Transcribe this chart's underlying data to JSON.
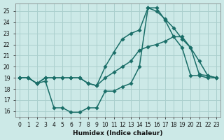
{
  "xlabel": "Humidex (Indice chaleur)",
  "xlim": [
    -0.5,
    23.5
  ],
  "ylim": [
    15.5,
    25.7
  ],
  "xticks": [
    0,
    1,
    2,
    3,
    4,
    5,
    6,
    7,
    8,
    9,
    10,
    11,
    12,
    13,
    14,
    15,
    16,
    17,
    18,
    19,
    20,
    21,
    22,
    23
  ],
  "yticks": [
    16,
    17,
    18,
    19,
    20,
    21,
    22,
    23,
    24,
    25
  ],
  "bg_color": "#cce9e7",
  "grid_color": "#aacfcd",
  "line_color": "#1a6e68",
  "line1_x": [
    0,
    1,
    2,
    3,
    4,
    5,
    6,
    7,
    8,
    9,
    10,
    11,
    12,
    13,
    14,
    15,
    16,
    17,
    18,
    19,
    20,
    21,
    22,
    23
  ],
  "line1_y": [
    19.0,
    19.0,
    18.5,
    18.7,
    16.3,
    16.3,
    15.9,
    15.9,
    16.3,
    16.3,
    17.8,
    17.8,
    18.2,
    18.5,
    20.0,
    25.3,
    25.3,
    24.2,
    22.7,
    21.7,
    19.2,
    19.2,
    19.0,
    19.0
  ],
  "line2_x": [
    0,
    1,
    2,
    3,
    4,
    5,
    6,
    7,
    8,
    9,
    10,
    11,
    12,
    13,
    14,
    15,
    16,
    17,
    18,
    19,
    20,
    21,
    22,
    23
  ],
  "line2_y": [
    19.0,
    19.0,
    18.5,
    19.0,
    19.0,
    19.0,
    19.0,
    19.0,
    18.5,
    18.3,
    19.0,
    19.5,
    20.0,
    20.5,
    21.5,
    21.8,
    22.0,
    22.3,
    22.7,
    22.7,
    21.7,
    20.5,
    19.2,
    19.0
  ],
  "line3_x": [
    0,
    1,
    2,
    3,
    4,
    5,
    6,
    7,
    8,
    9,
    10,
    11,
    12,
    13,
    14,
    15,
    16,
    17,
    18,
    19,
    20,
    21,
    22,
    23
  ],
  "line3_y": [
    19.0,
    19.0,
    18.5,
    19.0,
    19.0,
    19.0,
    19.0,
    19.0,
    18.5,
    18.3,
    20.0,
    21.3,
    22.5,
    23.0,
    23.3,
    25.3,
    25.0,
    24.3,
    23.5,
    22.5,
    21.7,
    19.3,
    19.2,
    19.0
  ],
  "markersize": 2.8,
  "linewidth": 1.1
}
